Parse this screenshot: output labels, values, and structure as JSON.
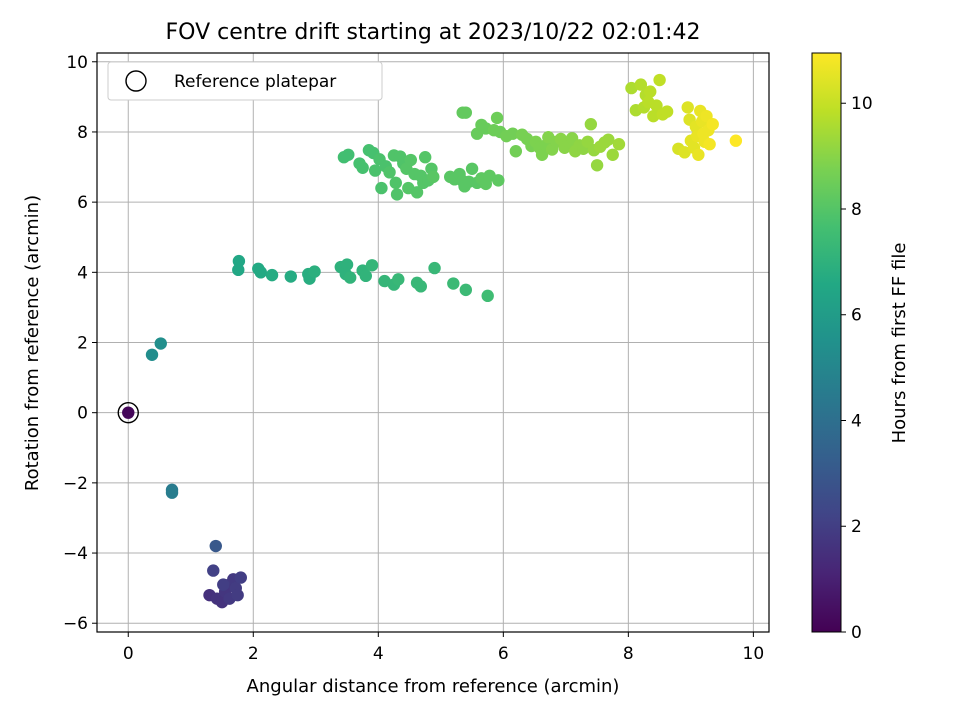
{
  "chart_data": {
    "type": "scatter",
    "title": "FOV centre drift starting at 2023/10/22 02:01:42",
    "xlabel": "Angular distance from reference (arcmin)",
    "ylabel": "Rotation from reference (arcmin)",
    "xlim": [
      -0.5,
      10.25
    ],
    "ylim": [
      -6.25,
      10.25
    ],
    "xticks": [
      0,
      2,
      4,
      6,
      8,
      10
    ],
    "yticks": [
      -6,
      -4,
      -2,
      0,
      2,
      4,
      6,
      8,
      10
    ],
    "grid": true,
    "colormap": "viridis",
    "colorbar": {
      "label": "Hours from first FF file",
      "range": [
        0,
        10.95
      ],
      "ticks": [
        0,
        2,
        4,
        6,
        8,
        10
      ]
    },
    "legend": {
      "placement": "upper-left",
      "entries": [
        "Reference platepar"
      ]
    },
    "reference_point": {
      "x": 0,
      "y": 0,
      "hours": 0.2
    },
    "points": [
      {
        "x": 1.3,
        "y": -5.2,
        "h": 1.5
      },
      {
        "x": 1.42,
        "y": -5.3,
        "h": 1.6
      },
      {
        "x": 1.5,
        "y": -5.4,
        "h": 1.6
      },
      {
        "x": 1.55,
        "y": -5.1,
        "h": 1.7
      },
      {
        "x": 1.58,
        "y": -4.92,
        "h": 1.7
      },
      {
        "x": 1.62,
        "y": -5.3,
        "h": 1.8
      },
      {
        "x": 1.68,
        "y": -4.75,
        "h": 1.8
      },
      {
        "x": 1.72,
        "y": -5.0,
        "h": 1.9
      },
      {
        "x": 1.75,
        "y": -5.2,
        "h": 1.9
      },
      {
        "x": 1.8,
        "y": -4.7,
        "h": 2.0
      },
      {
        "x": 1.36,
        "y": -4.5,
        "h": 2.1
      },
      {
        "x": 1.52,
        "y": -4.9,
        "h": 2.0
      },
      {
        "x": 1.4,
        "y": -3.8,
        "h": 3.0
      },
      {
        "x": 0.7,
        "y": -2.2,
        "h": 4.5
      },
      {
        "x": 0.7,
        "y": -2.28,
        "h": 4.6
      },
      {
        "x": 0.38,
        "y": 1.65,
        "h": 5.3
      },
      {
        "x": 0.52,
        "y": 1.97,
        "h": 5.4
      },
      {
        "x": 1.77,
        "y": 4.32,
        "h": 6.5
      },
      {
        "x": 1.76,
        "y": 4.07,
        "h": 6.5
      },
      {
        "x": 2.08,
        "y": 4.1,
        "h": 6.6
      },
      {
        "x": 2.12,
        "y": 4.0,
        "h": 6.6
      },
      {
        "x": 2.3,
        "y": 3.92,
        "h": 6.7
      },
      {
        "x": 2.6,
        "y": 3.88,
        "h": 6.7
      },
      {
        "x": 2.88,
        "y": 3.95,
        "h": 6.8
      },
      {
        "x": 2.9,
        "y": 3.82,
        "h": 6.8
      },
      {
        "x": 2.98,
        "y": 4.02,
        "h": 6.9
      },
      {
        "x": 3.4,
        "y": 4.15,
        "h": 7.0
      },
      {
        "x": 3.5,
        "y": 4.22,
        "h": 7.0
      },
      {
        "x": 3.48,
        "y": 3.95,
        "h": 7.0
      },
      {
        "x": 3.55,
        "y": 3.85,
        "h": 7.1
      },
      {
        "x": 3.75,
        "y": 4.05,
        "h": 7.1
      },
      {
        "x": 3.8,
        "y": 3.9,
        "h": 7.1
      },
      {
        "x": 3.9,
        "y": 4.2,
        "h": 7.2
      },
      {
        "x": 4.1,
        "y": 3.75,
        "h": 7.2
      },
      {
        "x": 4.25,
        "y": 3.65,
        "h": 7.2
      },
      {
        "x": 4.32,
        "y": 3.8,
        "h": 7.3
      },
      {
        "x": 4.62,
        "y": 3.7,
        "h": 7.3
      },
      {
        "x": 4.68,
        "y": 3.6,
        "h": 7.3
      },
      {
        "x": 4.9,
        "y": 4.12,
        "h": 7.3
      },
      {
        "x": 5.2,
        "y": 3.68,
        "h": 7.4
      },
      {
        "x": 5.4,
        "y": 3.5,
        "h": 7.4
      },
      {
        "x": 5.75,
        "y": 3.33,
        "h": 7.5
      },
      {
        "x": 3.45,
        "y": 7.28,
        "h": 7.6
      },
      {
        "x": 3.52,
        "y": 7.35,
        "h": 7.6
      },
      {
        "x": 3.7,
        "y": 7.1,
        "h": 7.7
      },
      {
        "x": 3.75,
        "y": 6.98,
        "h": 7.7
      },
      {
        "x": 3.85,
        "y": 7.48,
        "h": 7.7
      },
      {
        "x": 3.92,
        "y": 7.4,
        "h": 7.7
      },
      {
        "x": 3.95,
        "y": 6.9,
        "h": 7.8
      },
      {
        "x": 4.02,
        "y": 7.22,
        "h": 7.8
      },
      {
        "x": 4.05,
        "y": 6.4,
        "h": 7.8
      },
      {
        "x": 4.12,
        "y": 7.02,
        "h": 7.8
      },
      {
        "x": 4.18,
        "y": 6.85,
        "h": 7.9
      },
      {
        "x": 4.25,
        "y": 7.33,
        "h": 7.9
      },
      {
        "x": 4.28,
        "y": 6.55,
        "h": 7.9
      },
      {
        "x": 4.3,
        "y": 6.22,
        "h": 7.9
      },
      {
        "x": 4.35,
        "y": 7.3,
        "h": 7.9
      },
      {
        "x": 4.4,
        "y": 7.1,
        "h": 7.9
      },
      {
        "x": 4.45,
        "y": 6.95,
        "h": 8.0
      },
      {
        "x": 4.48,
        "y": 6.4,
        "h": 8.0
      },
      {
        "x": 4.52,
        "y": 7.2,
        "h": 8.0
      },
      {
        "x": 4.58,
        "y": 6.8,
        "h": 8.0
      },
      {
        "x": 4.62,
        "y": 6.28,
        "h": 8.0
      },
      {
        "x": 4.68,
        "y": 6.75,
        "h": 8.0
      },
      {
        "x": 4.72,
        "y": 6.55,
        "h": 8.0
      },
      {
        "x": 4.75,
        "y": 7.28,
        "h": 8.0
      },
      {
        "x": 4.8,
        "y": 6.62,
        "h": 8.0
      },
      {
        "x": 4.85,
        "y": 6.95,
        "h": 8.0
      },
      {
        "x": 4.88,
        "y": 6.72,
        "h": 8.1
      },
      {
        "x": 5.15,
        "y": 6.72,
        "h": 8.1
      },
      {
        "x": 5.22,
        "y": 6.65,
        "h": 8.1
      },
      {
        "x": 5.3,
        "y": 6.8,
        "h": 8.1
      },
      {
        "x": 5.35,
        "y": 6.6,
        "h": 8.1
      },
      {
        "x": 5.38,
        "y": 6.45,
        "h": 8.1
      },
      {
        "x": 5.45,
        "y": 6.58,
        "h": 8.1
      },
      {
        "x": 5.5,
        "y": 6.95,
        "h": 8.1
      },
      {
        "x": 5.58,
        "y": 6.55,
        "h": 8.1
      },
      {
        "x": 5.65,
        "y": 6.68,
        "h": 8.2
      },
      {
        "x": 5.72,
        "y": 6.52,
        "h": 8.2
      },
      {
        "x": 5.78,
        "y": 6.75,
        "h": 8.2
      },
      {
        "x": 5.92,
        "y": 6.62,
        "h": 8.2
      },
      {
        "x": 5.35,
        "y": 8.55,
        "h": 8.3
      },
      {
        "x": 5.4,
        "y": 8.55,
        "h": 8.3
      },
      {
        "x": 5.58,
        "y": 7.95,
        "h": 8.4
      },
      {
        "x": 5.65,
        "y": 8.2,
        "h": 8.4
      },
      {
        "x": 5.72,
        "y": 8.1,
        "h": 8.4
      },
      {
        "x": 5.85,
        "y": 8.05,
        "h": 8.5
      },
      {
        "x": 5.9,
        "y": 8.4,
        "h": 8.5
      },
      {
        "x": 5.95,
        "y": 8.0,
        "h": 8.5
      },
      {
        "x": 6.05,
        "y": 7.88,
        "h": 8.6
      },
      {
        "x": 6.15,
        "y": 7.95,
        "h": 8.6
      },
      {
        "x": 6.2,
        "y": 7.45,
        "h": 8.6
      },
      {
        "x": 6.3,
        "y": 7.92,
        "h": 8.7
      },
      {
        "x": 6.38,
        "y": 7.8,
        "h": 8.7
      },
      {
        "x": 6.45,
        "y": 7.6,
        "h": 8.7
      },
      {
        "x": 6.52,
        "y": 7.72,
        "h": 8.8
      },
      {
        "x": 6.58,
        "y": 7.55,
        "h": 8.8
      },
      {
        "x": 6.62,
        "y": 7.35,
        "h": 8.8
      },
      {
        "x": 6.68,
        "y": 7.62,
        "h": 8.8
      },
      {
        "x": 6.72,
        "y": 7.85,
        "h": 8.9
      },
      {
        "x": 6.78,
        "y": 7.5,
        "h": 8.9
      },
      {
        "x": 6.85,
        "y": 7.72,
        "h": 8.9
      },
      {
        "x": 6.92,
        "y": 7.8,
        "h": 9.0
      },
      {
        "x": 6.98,
        "y": 7.55,
        "h": 9.0
      },
      {
        "x": 7.05,
        "y": 7.7,
        "h": 9.0
      },
      {
        "x": 7.1,
        "y": 7.82,
        "h": 9.0
      },
      {
        "x": 7.15,
        "y": 7.45,
        "h": 9.1
      },
      {
        "x": 7.22,
        "y": 7.62,
        "h": 9.1
      },
      {
        "x": 7.28,
        "y": 7.52,
        "h": 9.1
      },
      {
        "x": 7.35,
        "y": 7.72,
        "h": 9.2
      },
      {
        "x": 7.4,
        "y": 8.22,
        "h": 9.2
      },
      {
        "x": 7.45,
        "y": 7.48,
        "h": 9.2
      },
      {
        "x": 7.5,
        "y": 7.05,
        "h": 9.2
      },
      {
        "x": 7.55,
        "y": 7.58,
        "h": 9.3
      },
      {
        "x": 7.62,
        "y": 7.7,
        "h": 9.3
      },
      {
        "x": 7.68,
        "y": 7.78,
        "h": 9.3
      },
      {
        "x": 7.75,
        "y": 7.35,
        "h": 9.3
      },
      {
        "x": 7.85,
        "y": 7.65,
        "h": 9.4
      },
      {
        "x": 8.05,
        "y": 9.25,
        "h": 9.6
      },
      {
        "x": 8.12,
        "y": 8.62,
        "h": 9.6
      },
      {
        "x": 8.2,
        "y": 9.35,
        "h": 9.7
      },
      {
        "x": 8.25,
        "y": 8.7,
        "h": 9.7
      },
      {
        "x": 8.28,
        "y": 9.05,
        "h": 9.7
      },
      {
        "x": 8.32,
        "y": 8.85,
        "h": 9.8
      },
      {
        "x": 8.35,
        "y": 9.15,
        "h": 9.8
      },
      {
        "x": 8.4,
        "y": 8.45,
        "h": 9.8
      },
      {
        "x": 8.45,
        "y": 8.75,
        "h": 9.8
      },
      {
        "x": 8.5,
        "y": 9.48,
        "h": 9.9
      },
      {
        "x": 8.55,
        "y": 8.5,
        "h": 9.9
      },
      {
        "x": 8.62,
        "y": 8.58,
        "h": 9.9
      },
      {
        "x": 8.8,
        "y": 7.52,
        "h": 10.3
      },
      {
        "x": 8.9,
        "y": 7.42,
        "h": 10.4
      },
      {
        "x": 8.95,
        "y": 8.7,
        "h": 10.4
      },
      {
        "x": 8.98,
        "y": 8.35,
        "h": 10.4
      },
      {
        "x": 9.0,
        "y": 7.75,
        "h": 10.5
      },
      {
        "x": 9.05,
        "y": 7.55,
        "h": 10.5
      },
      {
        "x": 9.08,
        "y": 8.15,
        "h": 10.5
      },
      {
        "x": 9.1,
        "y": 7.88,
        "h": 10.6
      },
      {
        "x": 9.12,
        "y": 7.35,
        "h": 10.6
      },
      {
        "x": 9.15,
        "y": 8.6,
        "h": 10.6
      },
      {
        "x": 9.18,
        "y": 8.3,
        "h": 10.6
      },
      {
        "x": 9.2,
        "y": 7.95,
        "h": 10.7
      },
      {
        "x": 9.22,
        "y": 7.72,
        "h": 10.7
      },
      {
        "x": 9.25,
        "y": 8.45,
        "h": 10.7
      },
      {
        "x": 9.28,
        "y": 8.05,
        "h": 10.7
      },
      {
        "x": 9.3,
        "y": 7.65,
        "h": 10.8
      },
      {
        "x": 9.35,
        "y": 8.22,
        "h": 10.8
      },
      {
        "x": 9.72,
        "y": 7.75,
        "h": 10.95
      }
    ]
  }
}
